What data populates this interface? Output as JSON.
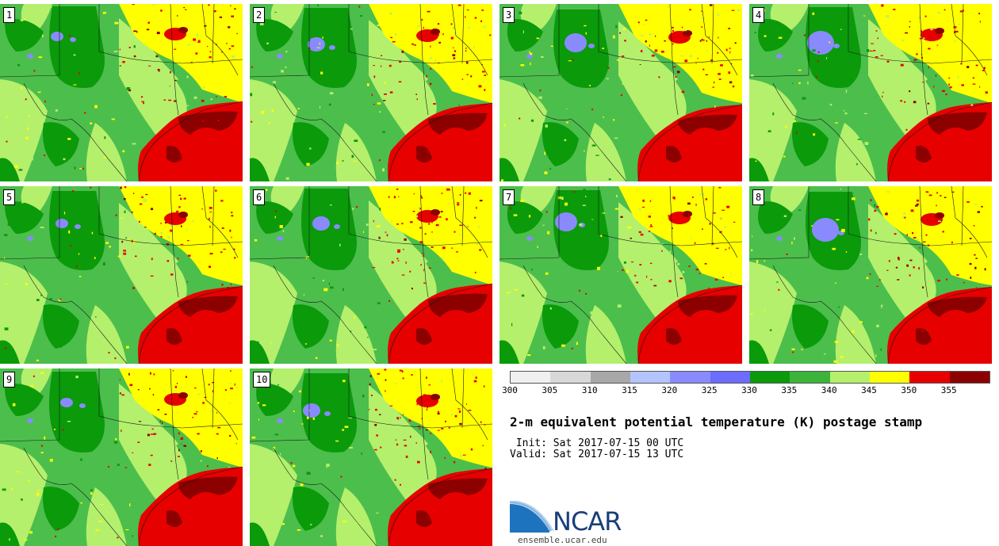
{
  "panels": [
    {
      "label": "1"
    },
    {
      "label": "2"
    },
    {
      "label": "3"
    },
    {
      "label": "4"
    },
    {
      "label": "5"
    },
    {
      "label": "6"
    },
    {
      "label": "7"
    },
    {
      "label": "8"
    },
    {
      "label": "9"
    },
    {
      "label": "10"
    }
  ],
  "colorbar": {
    "colors": [
      "#f0f0f0",
      "#d8d8d8",
      "#a8a8a8",
      "#b4c4ff",
      "#8a8aff",
      "#6c6cff",
      "#0a9a0a",
      "#3cb43c",
      "#b4f06c",
      "#ffff00",
      "#e60000",
      "#8c0000"
    ],
    "tick_labels": [
      "300",
      "305",
      "310",
      "315",
      "320",
      "325",
      "330",
      "335",
      "340",
      "345",
      "350",
      "355"
    ]
  },
  "title": "2-m equivalent potential temperature (K) postage stamp",
  "init_text": " Init: Sat 2017-07-15 00 UTC",
  "valid_text": "Valid: Sat 2017-07-15 13 UTC",
  "logo": {
    "text": "NCAR",
    "url": "ensemble.ucar.edu"
  }
}
